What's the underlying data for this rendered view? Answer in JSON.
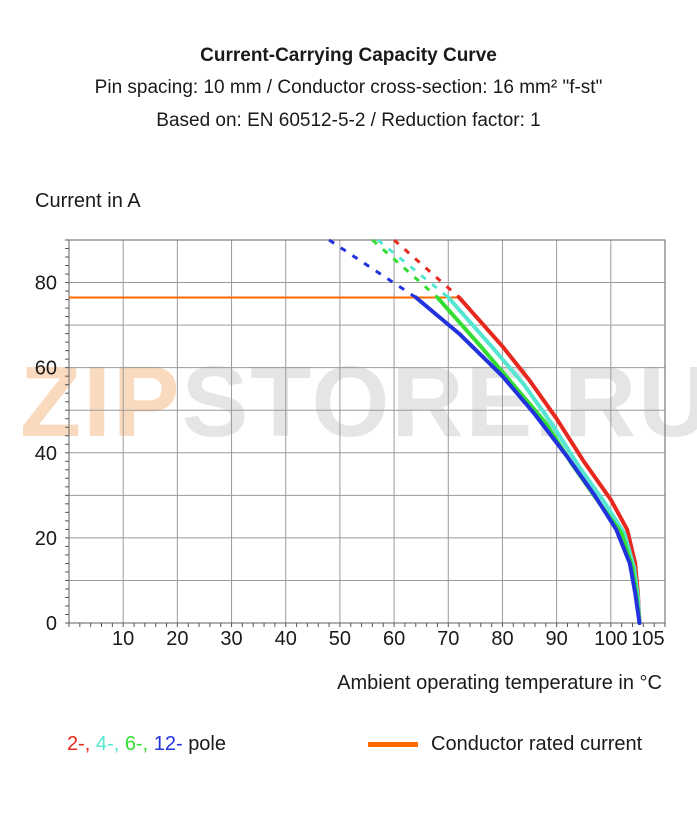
{
  "titles": {
    "main": "Current-Carrying Capacity Curve",
    "line2": "Pin spacing: 10 mm / Conductor cross-section: 16 mm² \"f-st\"",
    "line3": "Based on: EN 60512-5-2 / Reduction factor: 1"
  },
  "watermark": {
    "part1": "ZIP",
    "part2": "STORE.RU"
  },
  "legend": {
    "poles": [
      {
        "label": "2-,",
        "color": "#e8281e"
      },
      {
        "label": "4-,",
        "color": "#55e6d2"
      },
      {
        "label": "6-,",
        "color": "#33dd33"
      },
      {
        "label": "12-",
        "color": "#2233dd"
      }
    ],
    "poles_suffix": "pole",
    "rated_label": "Conductor rated current",
    "rated_color": "#ff6a00"
  },
  "chart_data": {
    "type": "line",
    "title": "Current-Carrying Capacity Curve",
    "xlabel": "Ambient operating temperature in °C",
    "ylabel": "Current in A",
    "xlim": [
      0,
      110
    ],
    "ylim": [
      0,
      90
    ],
    "x_ticks": [
      10,
      20,
      30,
      40,
      50,
      60,
      70,
      80,
      90,
      100,
      105
    ],
    "y_ticks": [
      0,
      20,
      40,
      60,
      80
    ],
    "grid": true,
    "rated_current": 76.5,
    "series": [
      {
        "name": "2-",
        "color": "#e8281e",
        "solid": [
          [
            72,
            76.5
          ],
          [
            80,
            65
          ],
          [
            85,
            57
          ],
          [
            90,
            48
          ],
          [
            95,
            38
          ],
          [
            100,
            29
          ],
          [
            103,
            22
          ],
          [
            104.5,
            14
          ],
          [
            105,
            7
          ],
          [
            105.3,
            0
          ]
        ],
        "dashed": [
          [
            60,
            90
          ],
          [
            72,
            76.5
          ]
        ]
      },
      {
        "name": "4-",
        "color": "#55e6d2",
        "solid": [
          [
            70,
            76.5
          ],
          [
            78,
            65
          ],
          [
            84,
            56
          ],
          [
            89,
            47
          ],
          [
            94,
            37
          ],
          [
            99,
            28
          ],
          [
            102.5,
            21
          ],
          [
            104.3,
            13
          ],
          [
            105,
            6
          ],
          [
            105.3,
            0
          ]
        ],
        "dashed": [
          [
            57,
            90
          ],
          [
            70,
            76.5
          ]
        ]
      },
      {
        "name": "6-",
        "color": "#33dd33",
        "solid": [
          [
            68,
            76.5
          ],
          [
            76,
            65
          ],
          [
            82,
            56
          ],
          [
            88,
            47
          ],
          [
            93,
            37
          ],
          [
            98,
            28
          ],
          [
            102,
            21
          ],
          [
            104,
            13
          ],
          [
            104.8,
            6
          ],
          [
            105.3,
            0
          ]
        ],
        "dashed": [
          [
            56,
            90
          ],
          [
            68,
            76.5
          ]
        ]
      },
      {
        "name": "12-",
        "color": "#2233dd",
        "solid": [
          [
            64,
            76.5
          ],
          [
            72,
            68
          ],
          [
            80,
            58
          ],
          [
            86,
            49
          ],
          [
            92,
            39
          ],
          [
            97,
            30
          ],
          [
            101,
            22
          ],
          [
            103.5,
            14
          ],
          [
            104.5,
            7
          ],
          [
            105.3,
            0
          ]
        ],
        "dashed": [
          [
            48,
            90
          ],
          [
            64,
            76.5
          ]
        ]
      }
    ]
  }
}
